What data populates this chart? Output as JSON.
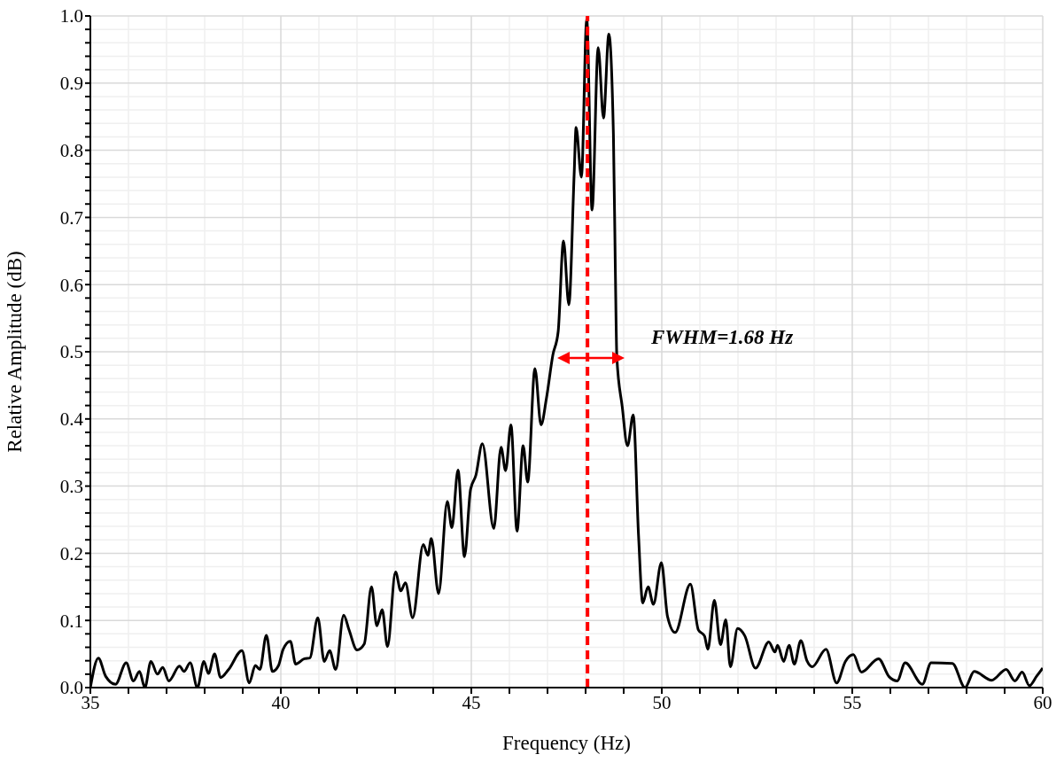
{
  "chart_data": {
    "type": "line",
    "xlabel": "Frequency (Hz)",
    "ylabel": "Relative Amplitude (dB)",
    "xlim": [
      35,
      60
    ],
    "ylim": [
      0,
      1
    ],
    "xticks": [
      35,
      {
        "value": 36,
        "label": null
      },
      {
        "value": 37,
        "label": null
      },
      {
        "value": 38,
        "label": null
      },
      {
        "value": 39,
        "label": null
      },
      40,
      {
        "value": 41,
        "label": null
      },
      {
        "value": 42,
        "label": null
      },
      {
        "value": 43,
        "label": null
      },
      {
        "value": 44,
        "label": null
      },
      45,
      {
        "value": 46,
        "label": null
      },
      {
        "value": 47,
        "label": null
      },
      {
        "value": 48,
        "label": null
      },
      {
        "value": 49,
        "label": null
      },
      50,
      {
        "value": 51,
        "label": null
      },
      {
        "value": 52,
        "label": null
      },
      {
        "value": 53,
        "label": null
      },
      {
        "value": 54,
        "label": null
      },
      55,
      {
        "value": 56,
        "label": null
      },
      {
        "value": 57,
        "label": null
      },
      {
        "value": 58,
        "label": null
      },
      {
        "value": 59,
        "label": null
      },
      60
    ],
    "yticks": [
      {
        "value": 0,
        "label": "0.0"
      },
      {
        "value": 0.02,
        "label": null
      },
      {
        "value": 0.04,
        "label": null
      },
      {
        "value": 0.06,
        "label": null
      },
      {
        "value": 0.08,
        "label": null
      },
      0.1,
      {
        "value": 0.12,
        "label": null
      },
      {
        "value": 0.14,
        "label": null
      },
      {
        "value": 0.16,
        "label": null
      },
      {
        "value": 0.18,
        "label": null
      },
      0.2,
      {
        "value": 0.22,
        "label": null
      },
      {
        "value": 0.24,
        "label": null
      },
      {
        "value": 0.26,
        "label": null
      },
      {
        "value": 0.28,
        "label": null
      },
      0.3,
      {
        "value": 0.32,
        "label": null
      },
      {
        "value": 0.34,
        "label": null
      },
      {
        "value": 0.36,
        "label": null
      },
      {
        "value": 0.38,
        "label": null
      },
      0.4,
      {
        "value": 0.42,
        "label": null
      },
      {
        "value": 0.44,
        "label": null
      },
      {
        "value": 0.46,
        "label": null
      },
      {
        "value": 0.48,
        "label": null
      },
      0.5,
      {
        "value": 0.52,
        "label": null
      },
      {
        "value": 0.54,
        "label": null
      },
      {
        "value": 0.56,
        "label": null
      },
      {
        "value": 0.58,
        "label": null
      },
      0.6,
      {
        "value": 0.62,
        "label": null
      },
      {
        "value": 0.64,
        "label": null
      },
      {
        "value": 0.66,
        "label": null
      },
      {
        "value": 0.68,
        "label": null
      },
      0.7,
      {
        "value": 0.72,
        "label": null
      },
      {
        "value": 0.74,
        "label": null
      },
      {
        "value": 0.76,
        "label": null
      },
      {
        "value": 0.78,
        "label": null
      },
      0.8,
      {
        "value": 0.82,
        "label": null
      },
      {
        "value": 0.84,
        "label": null
      },
      {
        "value": 0.86,
        "label": null
      },
      {
        "value": 0.88,
        "label": null
      },
      0.9,
      {
        "value": 0.92,
        "label": null
      },
      {
        "value": 0.94,
        "label": null
      },
      {
        "value": 0.96,
        "label": null
      },
      {
        "value": 0.98,
        "label": null
      },
      {
        "value": 1,
        "label": "1.0"
      }
    ],
    "grid": true,
    "line_style": "solid",
    "series": [
      {
        "color": "#000000",
        "x": [
          35.0,
          35.21,
          35.4,
          35.66,
          35.94,
          36.13,
          36.29,
          36.43,
          36.59,
          36.76,
          36.9,
          37.06,
          37.34,
          37.46,
          37.62,
          37.81,
          37.98,
          38.1,
          38.26,
          38.42,
          38.63,
          38.98,
          39.17,
          39.33,
          39.45,
          39.62,
          39.78,
          39.94,
          40.06,
          40.25,
          40.39,
          40.62,
          40.76,
          40.97,
          41.14,
          41.28,
          41.44,
          41.65,
          41.79,
          42.0,
          42.19,
          42.38,
          42.52,
          42.66,
          42.8,
          43.01,
          43.15,
          43.27,
          43.46,
          43.74,
          43.86,
          43.95,
          44.14,
          44.37,
          44.49,
          44.65,
          44.82,
          44.98,
          45.12,
          45.29,
          45.59,
          45.78,
          45.9,
          46.04,
          46.2,
          46.36,
          46.48,
          46.67,
          46.83,
          46.97,
          47.14,
          47.28,
          47.42,
          47.56,
          47.7,
          47.75,
          47.89,
          48.03,
          48.17,
          48.33,
          48.47,
          48.61,
          48.73,
          48.78,
          48.82,
          48.96,
          49.1,
          49.25,
          49.39,
          49.5,
          49.64,
          49.78,
          49.99,
          50.15,
          50.35,
          50.75,
          50.96,
          51.12,
          51.21,
          51.38,
          51.54,
          51.68,
          51.8,
          51.99,
          52.18,
          52.46,
          52.81,
          52.97,
          53.04,
          53.2,
          53.34,
          53.48,
          53.65,
          53.81,
          53.95,
          54.31,
          54.59,
          54.82,
          55.03,
          55.24,
          55.69,
          55.97,
          56.18,
          56.39,
          56.84,
          57.07,
          57.63,
          57.96,
          58.2,
          58.66,
          59.04,
          59.27,
          59.46,
          59.65,
          59.84,
          60.0
        ],
        "values": [
          0.0,
          0.044,
          0.017,
          0.005,
          0.037,
          0.01,
          0.024,
          0.0,
          0.039,
          0.02,
          0.03,
          0.01,
          0.032,
          0.024,
          0.037,
          0.0,
          0.039,
          0.021,
          0.05,
          0.015,
          0.027,
          0.055,
          0.007,
          0.033,
          0.027,
          0.078,
          0.024,
          0.033,
          0.057,
          0.069,
          0.035,
          0.043,
          0.044,
          0.104,
          0.039,
          0.055,
          0.027,
          0.108,
          0.086,
          0.056,
          0.065,
          0.15,
          0.092,
          0.116,
          0.061,
          0.172,
          0.144,
          0.156,
          0.104,
          0.213,
          0.197,
          0.222,
          0.14,
          0.277,
          0.238,
          0.324,
          0.195,
          0.295,
          0.316,
          0.363,
          0.237,
          0.358,
          0.323,
          0.391,
          0.233,
          0.36,
          0.306,
          0.475,
          0.391,
          0.43,
          0.495,
          0.53,
          0.665,
          0.57,
          0.765,
          0.834,
          0.76,
          0.995,
          0.711,
          0.953,
          0.848,
          0.973,
          0.824,
          0.625,
          0.492,
          0.419,
          0.36,
          0.406,
          0.226,
          0.126,
          0.15,
          0.124,
          0.186,
          0.106,
          0.082,
          0.154,
          0.086,
          0.077,
          0.057,
          0.13,
          0.064,
          0.101,
          0.031,
          0.088,
          0.077,
          0.029,
          0.068,
          0.053,
          0.063,
          0.039,
          0.063,
          0.035,
          0.07,
          0.04,
          0.031,
          0.057,
          0.007,
          0.039,
          0.049,
          0.023,
          0.043,
          0.016,
          0.01,
          0.037,
          0.005,
          0.037,
          0.036,
          0.0,
          0.024,
          0.011,
          0.027,
          0.01,
          0.023,
          0.003,
          0.017,
          0.029
        ]
      }
    ],
    "ref_lines": [
      {
        "axis": "x",
        "value": 48.05,
        "color": "#ff0000",
        "line_style": "dashed"
      }
    ],
    "annotations": [
      "FWHM=1.68 Hz"
    ]
  }
}
